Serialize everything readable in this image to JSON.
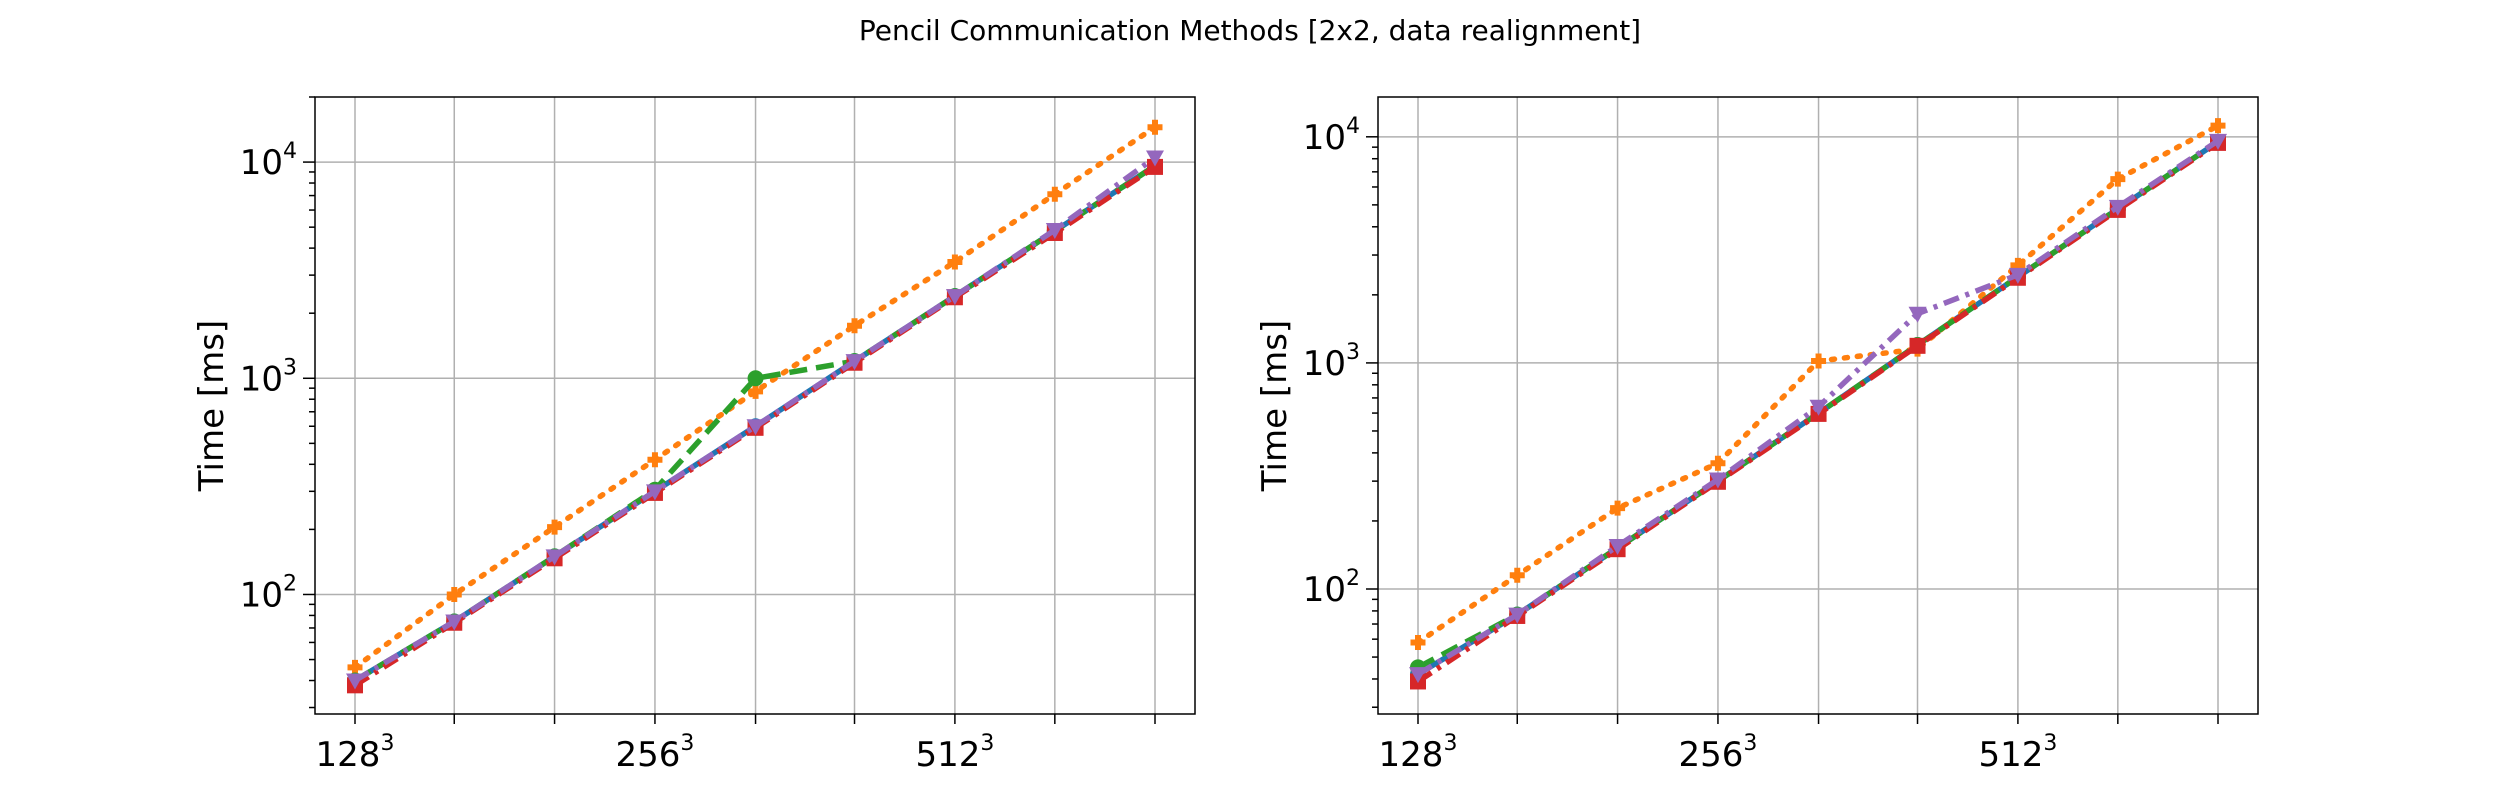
{
  "figure": {
    "title": "Pencil Communication Methods [2x2, data realignment]"
  },
  "chart_data": [
    {
      "type": "line",
      "panel": "left",
      "ylabel": "Time [ms]",
      "xlabel": "",
      "yscale": "log",
      "ylim": [
        28,
        20000
      ],
      "grid": true,
      "x": [
        128,
        161,
        203,
        256,
        323,
        406,
        512,
        645,
        813
      ],
      "x_tick_labels": [
        {
          "x": 128,
          "base": "128",
          "exp": "3"
        },
        {
          "x": 256,
          "base": "256",
          "exp": "3"
        },
        {
          "x": 512,
          "base": "512",
          "exp": "3"
        }
      ],
      "y_tick_labels": [
        {
          "y": 100,
          "base": "10",
          "exp": "2"
        },
        {
          "y": 1000,
          "base": "10",
          "exp": "3"
        },
        {
          "y": 10000,
          "base": "10",
          "exp": "4"
        }
      ],
      "series": [
        {
          "color": "#1f77b4",
          "linestyle": "solid",
          "marker": "circle",
          "values": [
            40,
            75,
            150,
            300,
            600,
            1200,
            2400,
            4800,
            9600
          ]
        },
        {
          "color": "#ff7f0e",
          "linestyle": "dotted",
          "marker": "plus",
          "values": [
            46,
            100,
            205,
            420,
            870,
            1750,
            3450,
            7100,
            14500
          ]
        },
        {
          "color": "#2ca02c",
          "linestyle": "dashed",
          "marker": "circle",
          "values": [
            40,
            75,
            150,
            305,
            1000,
            1200,
            2400,
            4800,
            9600
          ]
        },
        {
          "color": "#d62728",
          "linestyle": "dashdot",
          "marker": "square",
          "values": [
            38,
            74,
            147,
            295,
            590,
            1180,
            2370,
            4700,
            9500
          ]
        },
        {
          "color": "#9467bd",
          "linestyle": "dashdot",
          "marker": "triangle-down",
          "values": [
            40,
            75,
            150,
            300,
            600,
            1200,
            2400,
            4850,
            10500
          ]
        }
      ]
    },
    {
      "type": "line",
      "panel": "right",
      "ylabel": "Time [ms]",
      "xlabel": "",
      "yscale": "log",
      "ylim": [
        28,
        15000
      ],
      "grid": true,
      "x": [
        128,
        161,
        203,
        256,
        323,
        406,
        512,
        645,
        813
      ],
      "x_tick_labels": [
        {
          "x": 128,
          "base": "128",
          "exp": "3"
        },
        {
          "x": 256,
          "base": "256",
          "exp": "3"
        },
        {
          "x": 512,
          "base": "512",
          "exp": "3"
        }
      ],
      "y_tick_labels": [
        {
          "y": 100,
          "base": "10",
          "exp": "2"
        },
        {
          "y": 1000,
          "base": "10",
          "exp": "3"
        },
        {
          "y": 10000,
          "base": "10",
          "exp": "4"
        }
      ],
      "series": [
        {
          "color": "#1f77b4",
          "linestyle": "solid",
          "marker": "circle",
          "values": [
            42,
            77,
            152,
            300,
            600,
            1200,
            2400,
            4800,
            9500
          ]
        },
        {
          "color": "#ff7f0e",
          "linestyle": "dotted",
          "marker": "plus",
          "values": [
            58,
            115,
            228,
            360,
            1020,
            1150,
            2700,
            6500,
            11200
          ]
        },
        {
          "color": "#2ca02c",
          "linestyle": "dashed",
          "marker": "circle",
          "values": [
            45,
            77,
            152,
            300,
            600,
            1200,
            2400,
            4800,
            9500
          ]
        },
        {
          "color": "#d62728",
          "linestyle": "dashdot",
          "marker": "square",
          "values": [
            39,
            76,
            150,
            298,
            595,
            1190,
            2380,
            4750,
            9400
          ]
        },
        {
          "color": "#9467bd",
          "linestyle": "dashdot",
          "marker": "triangle-down",
          "values": [
            42,
            77,
            155,
            305,
            640,
            1650,
            2450,
            4900,
            9600
          ]
        }
      ]
    }
  ]
}
